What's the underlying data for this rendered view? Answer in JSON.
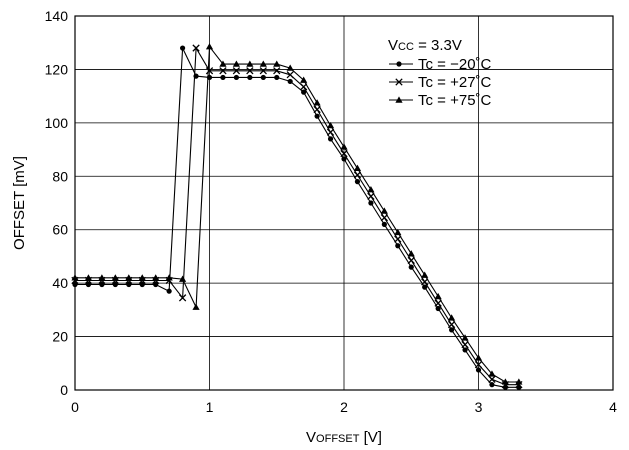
{
  "chart_data": {
    "type": "line",
    "xlabel": "VOFFSET [V]",
    "ylabel": "OFFSET [mV]",
    "xlim": [
      0,
      4
    ],
    "ylim": [
      0,
      140
    ],
    "xticks": [
      "0",
      "1",
      "2",
      "3",
      "4"
    ],
    "yticks": [
      "0",
      "20",
      "40",
      "60",
      "80",
      "100",
      "120",
      "140"
    ],
    "grid": true,
    "legend_placement": "top-right",
    "legend_header": "Vcc = 3.3V",
    "series": [
      {
        "name": "Tc = −20˚C",
        "marker": "circle",
        "x": [
          0,
          0.1,
          0.2,
          0.3,
          0.4,
          0.5,
          0.6,
          0.7,
          0.8,
          0.9,
          1.0,
          1.1,
          1.2,
          1.3,
          1.4,
          1.5,
          1.6,
          1.7,
          1.8,
          1.9,
          2.0,
          2.1,
          2.2,
          2.3,
          2.4,
          2.5,
          2.6,
          2.7,
          2.8,
          2.9,
          3.0,
          3.1,
          3.2,
          3.3
        ],
        "y": [
          39.5,
          39.5,
          39.5,
          39.5,
          39.5,
          39.5,
          39.5,
          37,
          128,
          117.5,
          117,
          117,
          117,
          117,
          117,
          117,
          115.5,
          111.5,
          102.5,
          94,
          86.5,
          78,
          70,
          62,
          54,
          46,
          38.5,
          30.5,
          22.5,
          15,
          7.5,
          2,
          1,
          1
        ]
      },
      {
        "name": "Tc = +27˚C",
        "marker": "x",
        "x": [
          0,
          0.1,
          0.2,
          0.3,
          0.4,
          0.5,
          0.6,
          0.7,
          0.8,
          0.9,
          1.0,
          1.1,
          1.2,
          1.3,
          1.4,
          1.5,
          1.6,
          1.7,
          1.8,
          1.9,
          2.0,
          2.1,
          2.2,
          2.3,
          2.4,
          2.5,
          2.6,
          2.7,
          2.8,
          2.9,
          3.0,
          3.1,
          3.2,
          3.3
        ],
        "y": [
          41,
          41,
          41,
          41,
          41,
          41,
          41,
          41,
          34.5,
          128,
          119.5,
          119.5,
          119.5,
          119.5,
          119.5,
          119.5,
          118,
          113.5,
          105,
          96.5,
          88.5,
          80.5,
          72.5,
          64.5,
          56.5,
          48.5,
          40.5,
          32.5,
          24.5,
          17,
          9.5,
          4,
          2,
          2
        ]
      },
      {
        "name": "Tc = +75˚C",
        "marker": "triangle",
        "x": [
          0,
          0.1,
          0.2,
          0.3,
          0.4,
          0.5,
          0.6,
          0.7,
          0.8,
          0.9,
          1.0,
          1.1,
          1.2,
          1.3,
          1.4,
          1.5,
          1.6,
          1.7,
          1.8,
          1.9,
          2.0,
          2.1,
          2.2,
          2.3,
          2.4,
          2.5,
          2.6,
          2.7,
          2.8,
          2.9,
          3.0,
          3.1,
          3.2,
          3.3
        ],
        "y": [
          42,
          42,
          42,
          42,
          42,
          42,
          42,
          42,
          41.5,
          31,
          128.5,
          122,
          122,
          122,
          122,
          122,
          120.5,
          116,
          107.5,
          99,
          91,
          83,
          75,
          67,
          59,
          51,
          43,
          35,
          27,
          19.5,
          12,
          6,
          3,
          3
        ]
      }
    ]
  }
}
